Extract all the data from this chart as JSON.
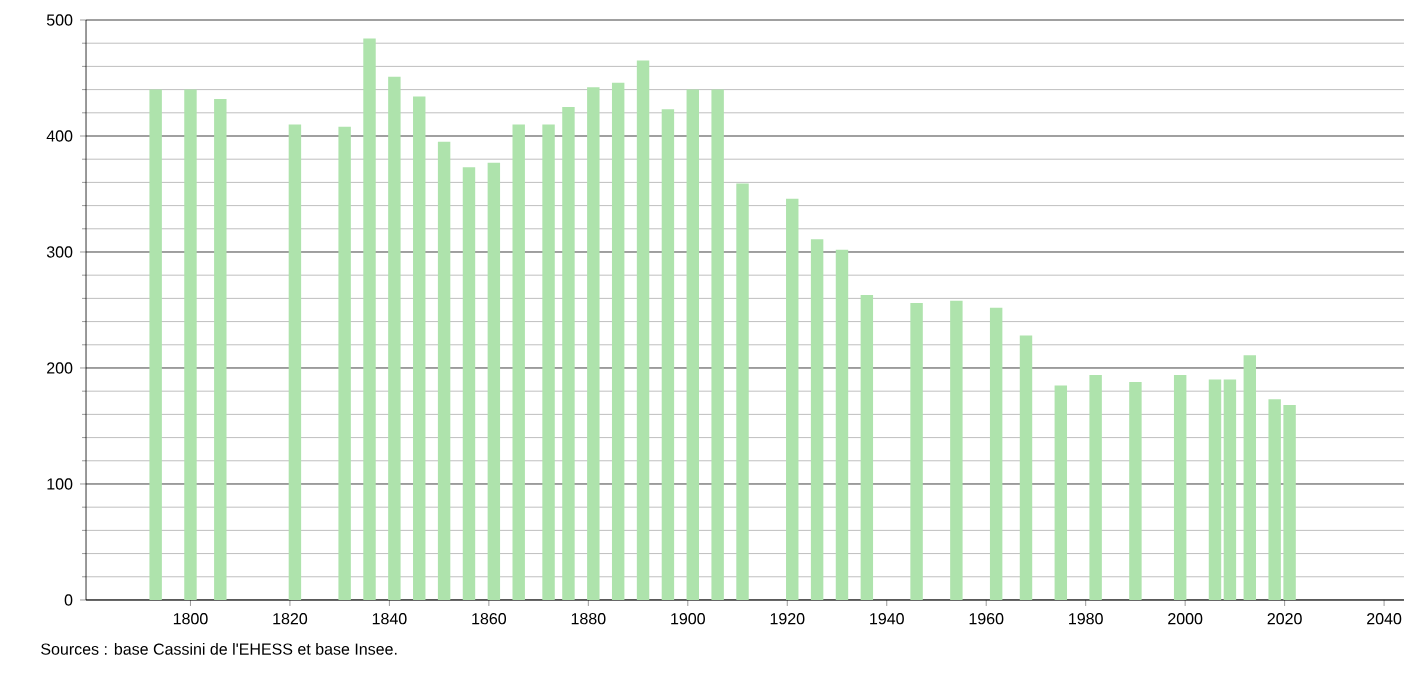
{
  "chart_data": {
    "type": "bar",
    "color": "#aee3ac",
    "x": [
      1793,
      1800,
      1806,
      1821,
      1831,
      1836,
      1841,
      1846,
      1851,
      1856,
      1861,
      1866,
      1872,
      1876,
      1881,
      1886,
      1891,
      1896,
      1901,
      1906,
      1911,
      1921,
      1926,
      1931,
      1936,
      1946,
      1954,
      1962,
      1968,
      1975,
      1982,
      1990,
      1999,
      2006,
      2009,
      2013,
      2018,
      2021
    ],
    "values": [
      440,
      440,
      432,
      410,
      408,
      484,
      451,
      434,
      395,
      373,
      377,
      410,
      410,
      425,
      442,
      446,
      465,
      423,
      440,
      440,
      359,
      346,
      311,
      302,
      263,
      256,
      258,
      252,
      228,
      185,
      194,
      188,
      194,
      190,
      190,
      211,
      173,
      168
    ],
    "xlim": [
      1779,
      2044
    ],
    "xticks": [
      1800,
      1820,
      1840,
      1860,
      1880,
      1900,
      1920,
      1940,
      1960,
      1980,
      2000,
      2020,
      2040
    ],
    "ylim": [
      0,
      500
    ],
    "yticks": [
      0,
      100,
      200,
      300,
      400,
      500
    ],
    "grid": "y",
    "annotations": [
      "Sources : base Cassini de l'EHESS et base Insee."
    ]
  }
}
